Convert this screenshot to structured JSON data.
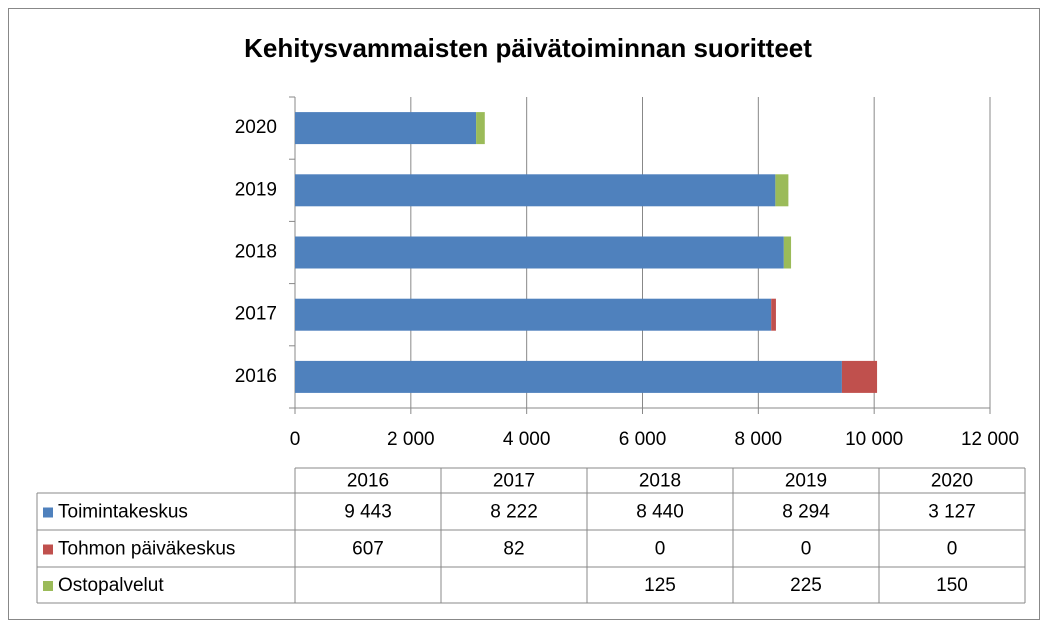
{
  "chart_data": {
    "type": "stacked-bar-horizontal",
    "title": "Kehitysvammaisten päivätoiminnan suoritteet",
    "categories": [
      "2016",
      "2017",
      "2018",
      "2019",
      "2020"
    ],
    "series": [
      {
        "name": "Toimintakeskus",
        "color": "#4f81bd",
        "values": [
          9443,
          8222,
          8440,
          8294,
          3127
        ],
        "value_labels": [
          "9 443",
          "8 222",
          "8 440",
          "8 294",
          "3 127"
        ]
      },
      {
        "name": "Tohmon päiväkeskus",
        "color": "#c0504d",
        "values": [
          607,
          82,
          0,
          0,
          0
        ]
      },
      {
        "name": "Ostopalvelut",
        "color": "#9bbb59",
        "values": [
          null,
          null,
          125,
          225,
          150
        ]
      }
    ],
    "xlim": [
      0,
      12000
    ],
    "xticks": [
      0,
      {
        "value": 2000,
        "label": "2 000"
      },
      {
        "value": 4000,
        "label": "4 000"
      },
      {
        "value": 6000,
        "label": "6 000"
      },
      {
        "value": 8000,
        "label": "8 000"
      },
      {
        "value": 10000,
        "label": "10 000"
      },
      {
        "value": 12000,
        "label": "12 000"
      }
    ],
    "grid": true
  }
}
